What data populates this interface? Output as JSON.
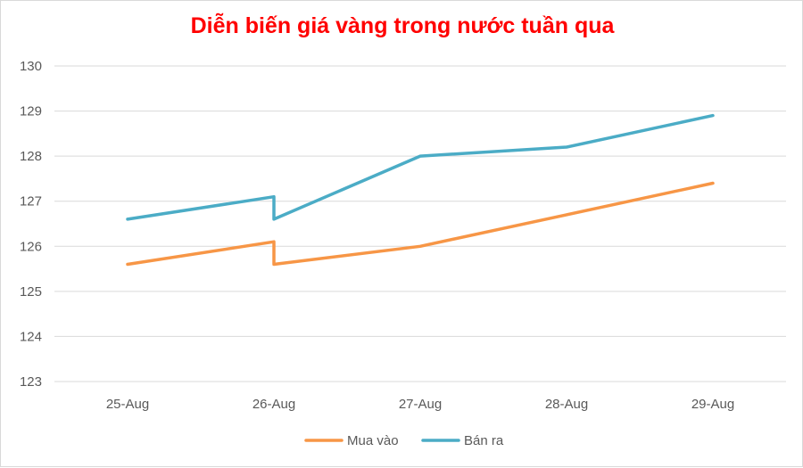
{
  "chart_data": {
    "type": "line",
    "title": "Diễn biến giá vàng trong nước tuần qua",
    "xlabel": "",
    "ylabel": "",
    "categories": [
      "25-Aug",
      "26-Aug",
      "27-Aug",
      "28-Aug",
      "29-Aug"
    ],
    "y_ticks": [
      "123",
      "124",
      "125",
      "126",
      "127",
      "128",
      "129",
      "130"
    ],
    "ylim": [
      123,
      130
    ],
    "grid": true,
    "legend_position": "bottom",
    "series": [
      {
        "name": "Mua vào",
        "color": "#f79646",
        "points": [
          {
            "x": 0,
            "y": 125.6
          },
          {
            "x": 1,
            "y": 126.1
          },
          {
            "x": 1,
            "y": 125.6
          },
          {
            "x": 2,
            "y": 126.0
          },
          {
            "x": 3,
            "y": 126.7
          },
          {
            "x": 4,
            "y": 127.4
          }
        ]
      },
      {
        "name": "Bán ra",
        "color": "#4bacc6",
        "points": [
          {
            "x": 0,
            "y": 126.6
          },
          {
            "x": 1,
            "y": 127.1
          },
          {
            "x": 1,
            "y": 126.6
          },
          {
            "x": 2,
            "y": 128.0
          },
          {
            "x": 3,
            "y": 128.2
          },
          {
            "x": 4,
            "y": 128.9
          }
        ]
      }
    ]
  }
}
